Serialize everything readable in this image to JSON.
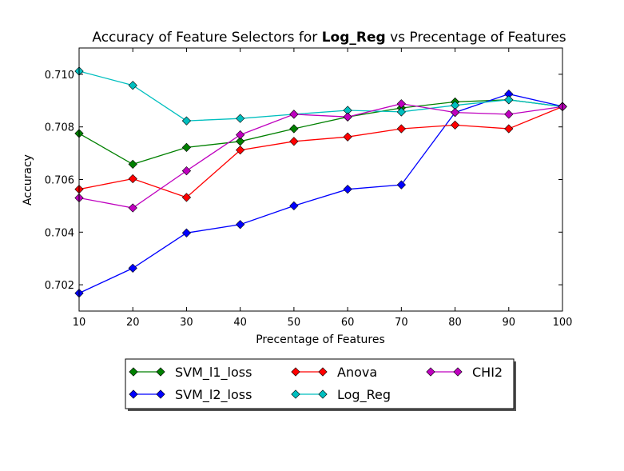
{
  "chart_data": {
    "type": "line",
    "title_prefix": "Accuracy of Feature Selectors for",
    "title_model": "Log_Reg",
    "title_suffix": "vs Precentage of Features",
    "xlabel": "Precentage of Features",
    "ylabel": "Accuracy",
    "xlim": [
      10,
      100
    ],
    "ylim": [
      0.701,
      0.711
    ],
    "x_ticks": [
      10,
      20,
      30,
      40,
      50,
      60,
      70,
      80,
      90,
      100
    ],
    "y_ticks": [
      0.702,
      0.704,
      0.706,
      0.708,
      0.71
    ],
    "x_tick_labels": [
      "10",
      "20",
      "30",
      "40",
      "50",
      "60",
      "70",
      "80",
      "90",
      "100"
    ],
    "y_tick_labels": [
      "0.702",
      "0.704",
      "0.706",
      "0.708",
      "0.710"
    ],
    "grid": false,
    "legend_placement": "below",
    "x": [
      10,
      20,
      30,
      40,
      50,
      60,
      70,
      80,
      90,
      100
    ],
    "series": [
      {
        "name": "SVM_l1_loss",
        "color": "#008000",
        "marker": "diamond",
        "values": [
          0.70775,
          0.70658,
          0.70722,
          0.70745,
          0.70793,
          0.70838,
          0.70872,
          0.70895,
          0.70903,
          0.70877
        ]
      },
      {
        "name": "SVM_l2_loss",
        "color": "#0000ff",
        "marker": "diamond",
        "values": [
          0.70168,
          0.70263,
          0.70397,
          0.70429,
          0.705,
          0.70563,
          0.7058,
          0.70855,
          0.70925,
          0.70878
        ]
      },
      {
        "name": "Anova",
        "color": "#ff0000",
        "marker": "diamond",
        "values": [
          0.70563,
          0.70603,
          0.70532,
          0.70712,
          0.70745,
          0.70762,
          0.70793,
          0.70807,
          0.70793,
          0.70877
        ]
      },
      {
        "name": "Log_Reg",
        "color": "#00bfbf",
        "marker": "diamond",
        "values": [
          0.71012,
          0.70958,
          0.70823,
          0.70832,
          0.70848,
          0.70863,
          0.70857,
          0.70882,
          0.70903,
          0.70877
        ]
      },
      {
        "name": "CHI2",
        "color": "#bf00bf",
        "marker": "diamond",
        "values": [
          0.7053,
          0.70492,
          0.70633,
          0.7077,
          0.70848,
          0.70838,
          0.70888,
          0.70855,
          0.70848,
          0.70877
        ]
      }
    ],
    "legend_order": [
      "SVM_l1_loss",
      "SVM_l2_loss",
      "Anova",
      "Log_Reg",
      "CHI2"
    ]
  }
}
